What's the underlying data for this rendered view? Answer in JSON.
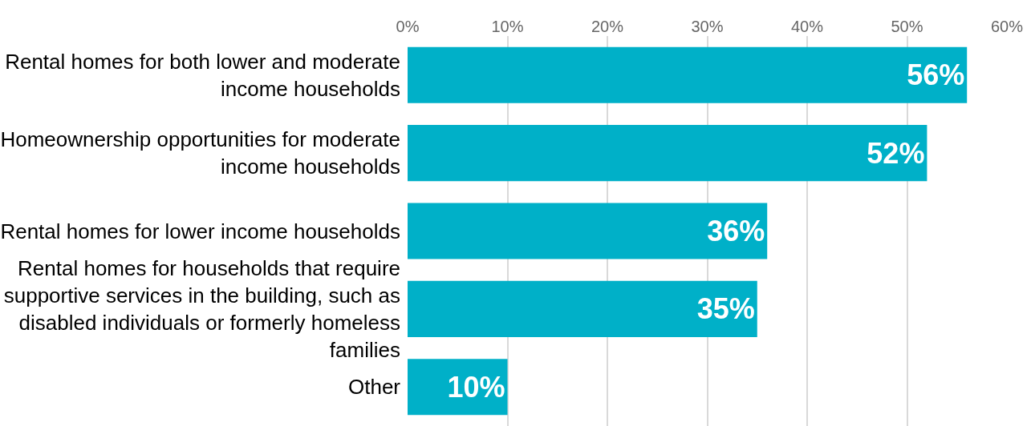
{
  "chart_data": {
    "type": "bar",
    "orientation": "horizontal",
    "categories": [
      "Rental homes for both lower and moderate income households",
      "Homeownership opportunities for moderate income households",
      "Rental homes for lower income households",
      "Rental homes for households that require supportive services in the building, such as disabled individuals or formerly homeless families",
      "Other"
    ],
    "values": [
      56,
      52,
      36,
      35,
      10
    ],
    "value_labels": [
      "56%",
      "52%",
      "36%",
      "35%",
      "10%"
    ],
    "color": "#00b0c8",
    "xlim": [
      0,
      60
    ],
    "xticks": [
      {
        "value": 0,
        "label": "0%"
      },
      {
        "value": 10,
        "label": "10%"
      },
      {
        "value": 20,
        "label": "20%"
      },
      {
        "value": 30,
        "label": "30%"
      },
      {
        "value": 40,
        "label": "40%"
      },
      {
        "value": 50,
        "label": "50%"
      },
      {
        "value": 60,
        "label": "60%"
      }
    ],
    "grid": "x",
    "legend": false
  }
}
